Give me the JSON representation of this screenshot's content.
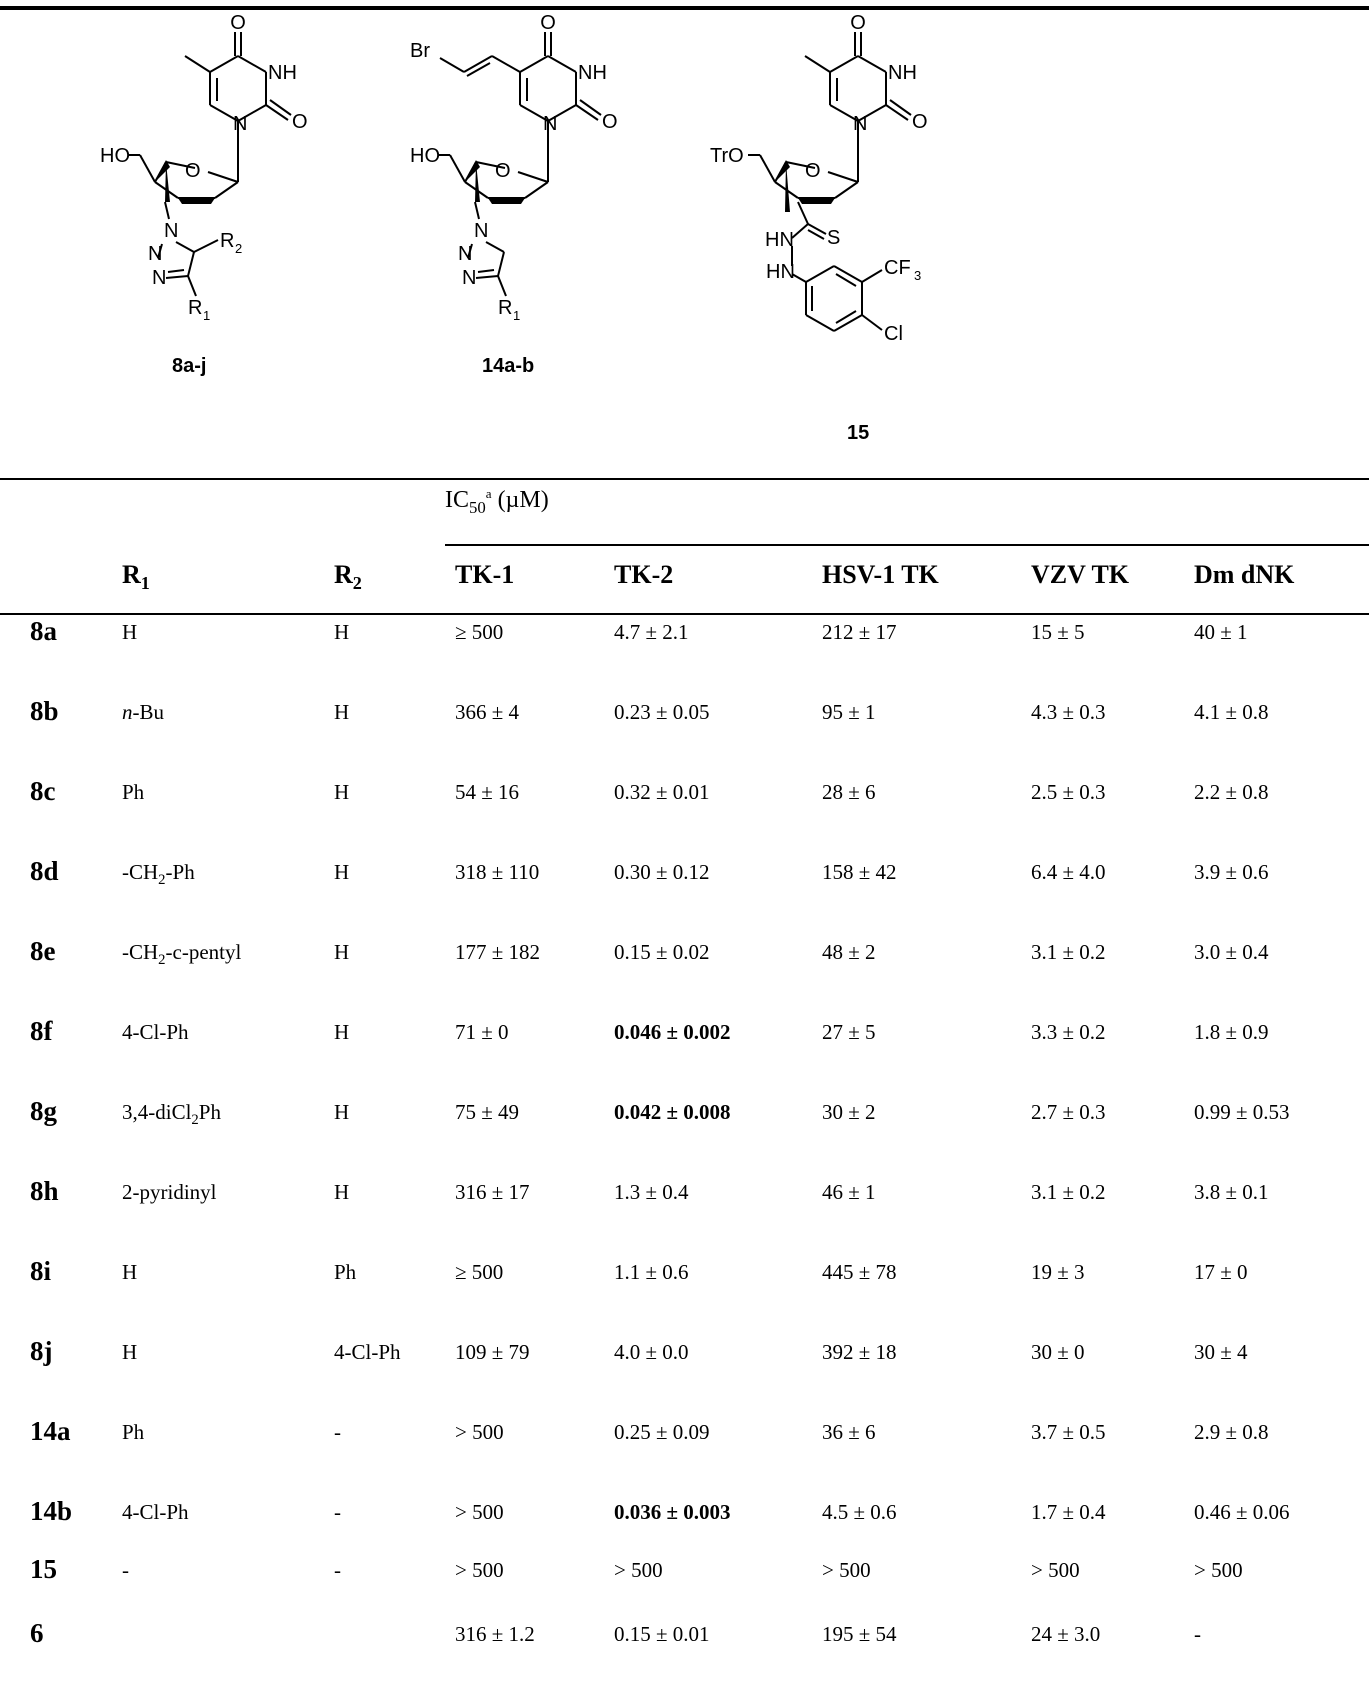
{
  "structures": [
    {
      "id": "8a-j"
    },
    {
      "id": "14a-b"
    },
    {
      "id": "15"
    }
  ],
  "structure_text": {
    "HO": "HO",
    "TrO": "TrO",
    "Br": "Br",
    "O": "O",
    "NH": "NH",
    "N": "N",
    "S": "S",
    "HN": "HN",
    "R1": "R",
    "R2": "R",
    "sub1": "1",
    "sub2": "2",
    "CF": "CF",
    "sub3": "3",
    "Cl": "Cl"
  },
  "table": {
    "ic50_label": "IC",
    "ic50_sub": "50",
    "ic50_sup": "a",
    "ic50_unit": " (µM)",
    "col_r1": "R",
    "col_r1_sub": "1",
    "col_r2": "R",
    "col_r2_sub": "2",
    "columns": [
      "TK-1",
      "TK-2",
      "HSV-1 TK",
      "VZV TK",
      "Dm dNK"
    ],
    "rows": [
      {
        "id": "8a",
        "r1": "H",
        "r2": "H",
        "tk1": "≥ 500",
        "tk2": "4.7 ± 2.1",
        "hsv": "212 ± 17",
        "vzv": "15 ± 5",
        "dm": "40 ± 1"
      },
      {
        "id": "8b",
        "r1_italic": "n",
        "r1": "-Bu",
        "r2": "H",
        "tk1": "366 ± 4",
        "tk2": "0.23 ± 0.05",
        "hsv": "95 ± 1",
        "vzv": "4.3 ± 0.3",
        "dm": "4.1 ± 0.8"
      },
      {
        "id": "8c",
        "r1": "Ph",
        "r2": "H",
        "tk1": "54 ± 16",
        "tk2": "0.32 ± 0.01",
        "hsv": "28 ± 6",
        "vzv": "2.5 ± 0.3",
        "dm": "2.2 ± 0.8"
      },
      {
        "id": "8d",
        "r1": "-CH",
        "r1_sub": "2",
        "r1_tail": "-Ph",
        "r2": "H",
        "tk1": "318 ± 110",
        "tk2": "0.30 ± 0.12",
        "hsv": "158 ± 42",
        "vzv": "6.4 ± 4.0",
        "dm": "3.9 ± 0.6"
      },
      {
        "id": "8e",
        "r1": "-CH",
        "r1_sub": "2",
        "r1_tail": "-c-pentyl",
        "r2": "H",
        "tk1": "177 ± 182",
        "tk2": "0.15 ± 0.02",
        "hsv": "48 ± 2",
        "vzv": "3.1 ± 0.2",
        "dm": "3.0 ± 0.4"
      },
      {
        "id": "8f",
        "r1": "4-Cl-Ph",
        "r2": "H",
        "tk1": "71 ± 0",
        "tk2": "0.046 ± 0.002",
        "tk2_bold": true,
        "hsv": "27 ± 5",
        "vzv": "3.3 ± 0.2",
        "dm": "1.8 ± 0.9"
      },
      {
        "id": "8g",
        "r1": "3,4-diCl",
        "r1_sub": "2",
        "r1_tail": "Ph",
        "r2": "H",
        "tk1": "75 ± 49",
        "tk2": "0.042 ± 0.008",
        "tk2_bold": true,
        "hsv": "30 ± 2",
        "vzv": "2.7 ± 0.3",
        "dm": "0.99 ± 0.53"
      },
      {
        "id": "8h",
        "r1": "2-pyridinyl",
        "r2": "H",
        "tk1": "316 ± 17",
        "tk2": "1.3 ± 0.4",
        "hsv": "46 ± 1",
        "vzv": "3.1 ± 0.2",
        "dm": "3.8 ± 0.1"
      },
      {
        "id": "8i",
        "r1": "H",
        "r2": "Ph",
        "tk1": "≥ 500",
        "tk2": "1.1 ± 0.6",
        "hsv": "445 ± 78",
        "vzv": "19 ± 3",
        "dm": "17 ± 0"
      },
      {
        "id": "8j",
        "r1": "H",
        "r2": "4-Cl-Ph",
        "tk1": "109 ± 79",
        "tk2": "4.0 ± 0.0",
        "hsv": "392 ± 18",
        "vzv": "30 ± 0",
        "dm": "30 ± 4"
      },
      {
        "id": "14a",
        "r1": "Ph",
        "r2": "-",
        "tk1": "> 500",
        "tk2": "0.25 ± 0.09",
        "hsv": "36 ± 6",
        "vzv": "3.7 ± 0.5",
        "dm": "2.9 ± 0.8"
      },
      {
        "id": "14b",
        "r1": "4-Cl-Ph",
        "r2": "-",
        "tk1": "> 500",
        "tk2": "0.036 ± 0.003",
        "tk2_bold": true,
        "hsv": "4.5 ± 0.6",
        "vzv": "1.7 ± 0.4",
        "dm": "0.46 ± 0.06"
      },
      {
        "id": "15",
        "r1": "-",
        "r2": "-",
        "tk1": "> 500",
        "tk2": "> 500",
        "hsv": "> 500",
        "vzv": "> 500",
        "dm": "> 500"
      },
      {
        "id": "6",
        "r1": "",
        "r2": "",
        "tk1": "316 ± 1.2",
        "tk2": "0.15 ± 0.01",
        "hsv": "195 ± 54",
        "vzv": "24 ± 3.0",
        "dm": "-"
      }
    ]
  }
}
